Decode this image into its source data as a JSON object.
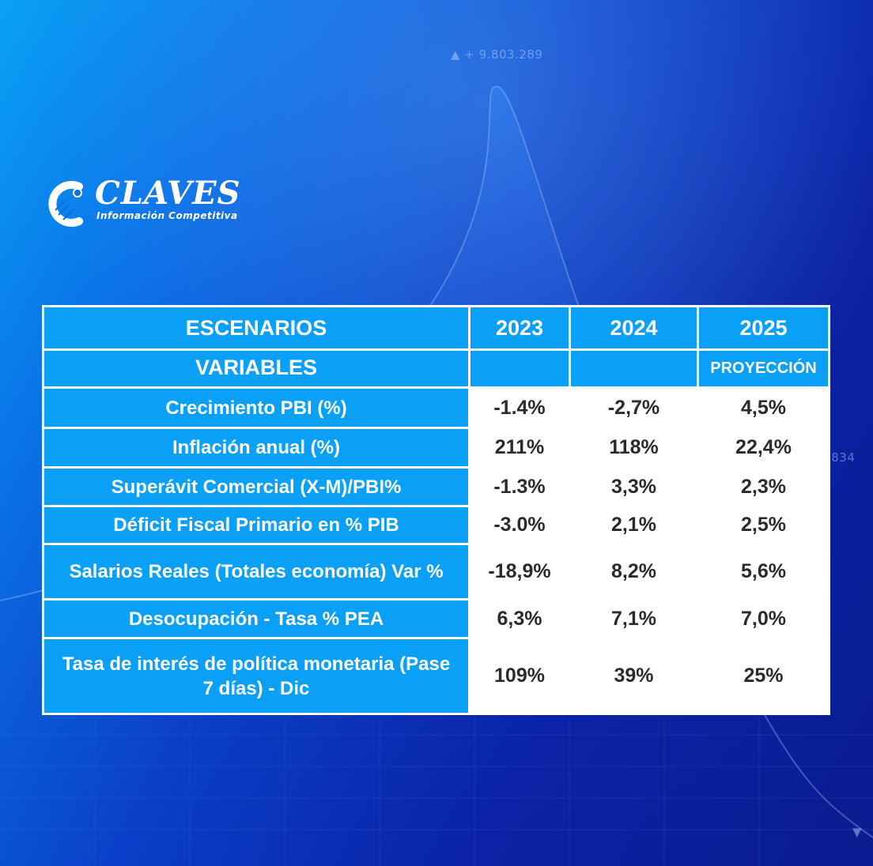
{
  "background": {
    "ticker_top": "▲ + 9.803.289",
    "ticker_right": ".834",
    "ticker_bottom": "▼",
    "colors": {
      "light": "#0aa2f5",
      "dark": "#091b8f"
    }
  },
  "logo": {
    "title": "CLAVES",
    "subtitle": "Información Competitiva"
  },
  "table": {
    "header": {
      "scenarios_label": "ESCENARIOS",
      "variables_label": "VARIABLES",
      "years": [
        "2023",
        "2024",
        "2025"
      ],
      "projection_label": "PROYECCIÓN"
    },
    "rows": [
      {
        "label": "Crecimiento PBI (%)",
        "values": [
          "-1.4%",
          "-2,7%",
          "4,5%"
        ]
      },
      {
        "label": "Inflación anual (%)",
        "values": [
          "211%",
          "118%",
          "22,4%"
        ]
      },
      {
        "label": "Superávit Comercial (X-M)/PBI%",
        "values": [
          "-1.3%",
          "3,3%",
          "2,3%"
        ]
      },
      {
        "label": "Déficit Fiscal Primario en % PIB",
        "values": [
          "-3.0%",
          "2,1%",
          "2,5%"
        ]
      },
      {
        "label": "Salarios Reales (Totales economía) Var %",
        "values": [
          "-18,9%",
          "8,2%",
          "5,6%"
        ]
      },
      {
        "label": "Desocupación - Tasa % PEA",
        "values": [
          "6,3%",
          "7,1%",
          "7,0%"
        ]
      },
      {
        "label": "Tasa de interés de política monetaria (Pase 7 días) - Dic",
        "values": [
          "109%",
          "39%",
          "25%"
        ]
      }
    ],
    "colors": {
      "header_bg": "#0aa0f8",
      "value_bg": "#ffffff",
      "value_text": "#2b2b2b"
    }
  }
}
